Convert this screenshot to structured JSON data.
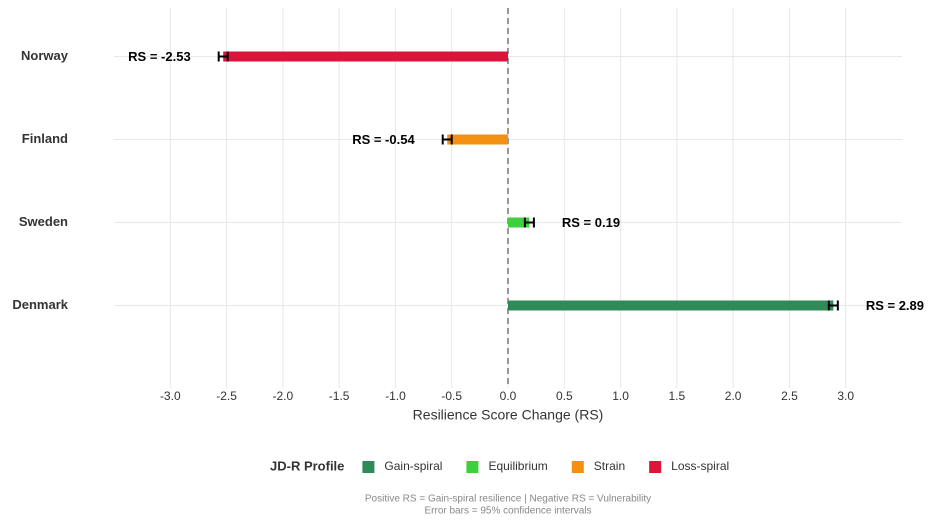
{
  "chart_data": {
    "type": "hbar",
    "x_label": "Resilience Score Change (RS)",
    "categories": [
      "Norway",
      "Finland",
      "Sweden",
      "Denmark"
    ],
    "series": [
      {
        "name": "Gain-spiral",
        "color": "#2e8b57",
        "values": [
          null,
          null,
          null,
          2.89
        ],
        "errors": [
          null,
          null,
          null,
          0.04
        ],
        "value_labels": [
          null,
          null,
          null,
          "RS = 2.89"
        ]
      },
      {
        "name": "Equilibrium",
        "color": "#3ecf3e",
        "values": [
          null,
          null,
          0.19,
          null
        ],
        "errors": [
          null,
          null,
          0.04,
          null
        ],
        "value_labels": [
          null,
          null,
          "RS = 0.19",
          null
        ]
      },
      {
        "name": "Strain",
        "color": "#f39012",
        "values": [
          null,
          -0.54,
          null,
          null
        ],
        "errors": [
          null,
          0.04,
          null,
          null
        ],
        "value_labels": [
          null,
          "RS = -0.54",
          null,
          null
        ]
      },
      {
        "name": "Loss-spiral",
        "color": "#dc143c",
        "values": [
          -2.53,
          null,
          null,
          null
        ],
        "errors": [
          0.04,
          null,
          null,
          null
        ],
        "value_labels": [
          "RS = -2.53",
          null,
          null,
          null
        ]
      }
    ],
    "xlim": [
      -3.5,
      3.5
    ],
    "xticks": [
      {
        "value": -3,
        "label": "-3.0"
      },
      -2.5,
      {
        "value": -2,
        "label": "-2.0"
      },
      -1.5,
      {
        "value": -1,
        "label": "-1.0"
      },
      -0.5,
      {
        "value": 0,
        "label": "0.0"
      },
      0.5,
      {
        "value": 1,
        "label": "1.0"
      },
      1.5,
      {
        "value": 2,
        "label": "2.0"
      },
      2.5,
      {
        "value": 3,
        "label": "3.0"
      }
    ],
    "grid": true,
    "zero_line": true,
    "legend_title": "JD-R Profile",
    "legend_position": "bottom",
    "notes": [
      "Positive RS = Gain-spiral resilience | Negative RS = Vulnerability",
      "Error bars = 95% confidence intervals"
    ]
  }
}
